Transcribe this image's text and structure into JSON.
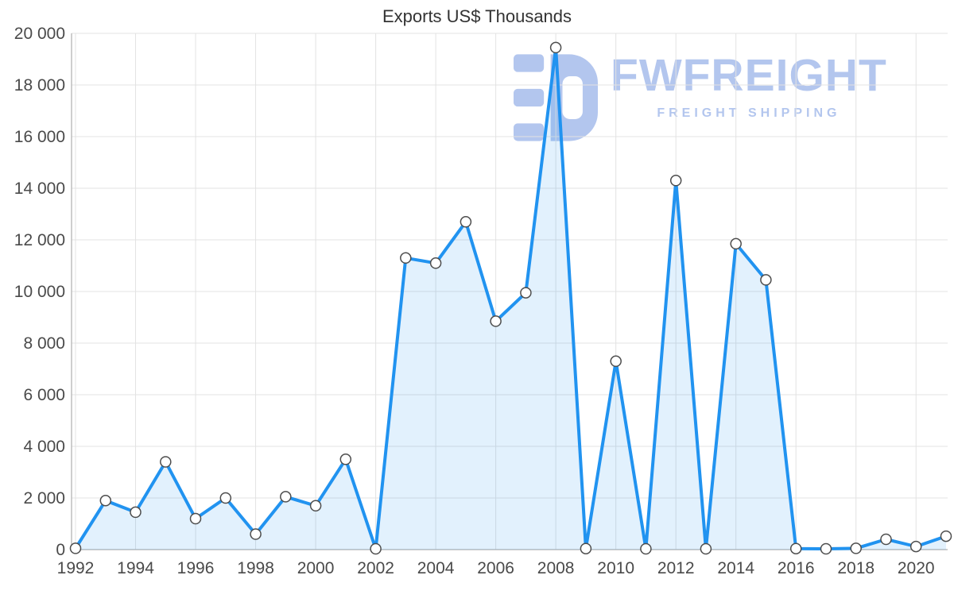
{
  "title": "Exports US$ Thousands",
  "watermark": {
    "brand": "FWFREIGHT",
    "tagline": "FREIGHT SHIPPING",
    "color": "#b3c6ee"
  },
  "chart_data": {
    "type": "area",
    "title": "Exports US$ Thousands",
    "xlabel": "",
    "ylabel": "",
    "x": [
      1992,
      1993,
      1994,
      1995,
      1996,
      1997,
      1998,
      1999,
      2000,
      2001,
      2002,
      2003,
      2004,
      2005,
      2006,
      2007,
      2008,
      2009,
      2010,
      2011,
      2012,
      2013,
      2014,
      2015,
      2016,
      2017,
      2018,
      2019,
      2020,
      2021
    ],
    "values": [
      50,
      1900,
      1450,
      3400,
      1200,
      2000,
      600,
      2050,
      1700,
      3500,
      30,
      11300,
      11100,
      12700,
      8850,
      9950,
      19450,
      40,
      7300,
      30,
      14300,
      30,
      11850,
      10450,
      40,
      30,
      50,
      400,
      120,
      520
    ],
    "ylim": [
      0,
      20000
    ],
    "ytick_interval": 2000,
    "ytick_labels": [
      "0",
      "2 000",
      "4 000",
      "6 000",
      "8 000",
      "10 000",
      "12 000",
      "14 000",
      "16 000",
      "18 000",
      "20 000"
    ],
    "xtick_interval": 2,
    "xtick_labels": [
      "1992",
      "1994",
      "1996",
      "1998",
      "2000",
      "2002",
      "2004",
      "2006",
      "2008",
      "2010",
      "2012",
      "2014",
      "2016",
      "2018",
      "2020"
    ],
    "grid": true,
    "legend": "none",
    "line_color": "#2193f0",
    "line_width": 4,
    "fill_color": "#2193f0",
    "fill_opacity": 0.13,
    "grid_color": "#e3e3e3",
    "axis_color": "#bdbdbd",
    "marker": {
      "fill": "#ffffff",
      "stroke": "#4d4d4d"
    }
  }
}
